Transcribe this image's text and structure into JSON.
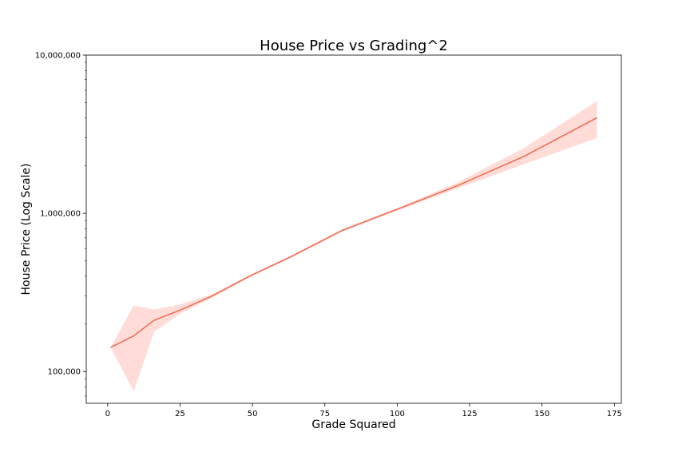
{
  "chart_data": {
    "type": "line",
    "title": "House Price vs Grading^2",
    "xlabel": "Grade Squared",
    "ylabel": "House Price (Log Scale)",
    "yscale": "log",
    "xlim": [
      -7.4,
      177.4
    ],
    "ylim": [
      63000,
      10000000
    ],
    "xticks": [
      0,
      25,
      50,
      75,
      100,
      125,
      150,
      175
    ],
    "xtick_labels": [
      "0",
      "25",
      "50",
      "75",
      "100",
      "125",
      "150",
      "175"
    ],
    "yticks": [
      100000,
      1000000,
      10000000
    ],
    "ytick_labels": [
      "100,000",
      "1,000,000",
      "10,000,000"
    ],
    "grid": false,
    "legend": "none",
    "series": [
      {
        "color": "#ee6a50",
        "band_color": "#ffc4bc",
        "x": [
          1,
          9,
          16,
          25,
          36,
          49,
          64,
          81,
          100,
          121,
          144,
          169
        ],
        "values": [
          142000,
          168000,
          211000,
          244000,
          300000,
          400000,
          540000,
          780000,
          1060000,
          1500000,
          2300000,
          4020000
        ],
        "ci_low": [
          142000,
          75000,
          178000,
          232000,
          292000,
          395000,
          532000,
          765000,
          1040000,
          1440000,
          2050000,
          2990000
        ],
        "ci_high": [
          142000,
          262000,
          247000,
          265000,
          308000,
          408000,
          548000,
          795000,
          1080000,
          1570000,
          2600000,
          5120000
        ]
      }
    ]
  }
}
